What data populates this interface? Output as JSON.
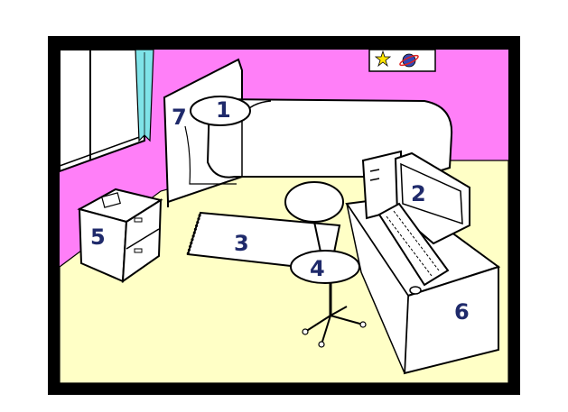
{
  "illustration": {
    "subject": "bedroom",
    "colors": {
      "frame": "#000000",
      "wall": "#ff7ff8",
      "floor": "#ffffc6",
      "curtain": "#7fe3e8",
      "furniture": "#ffffff",
      "numbers": "#1f2a6b"
    },
    "poster_icons": [
      "star-icon",
      "planet-icon"
    ]
  },
  "labels": {
    "pillow": "1",
    "computer": "2",
    "rug": "3",
    "chair": "4",
    "nightstand": "5",
    "desk": "6",
    "bed": "7"
  }
}
